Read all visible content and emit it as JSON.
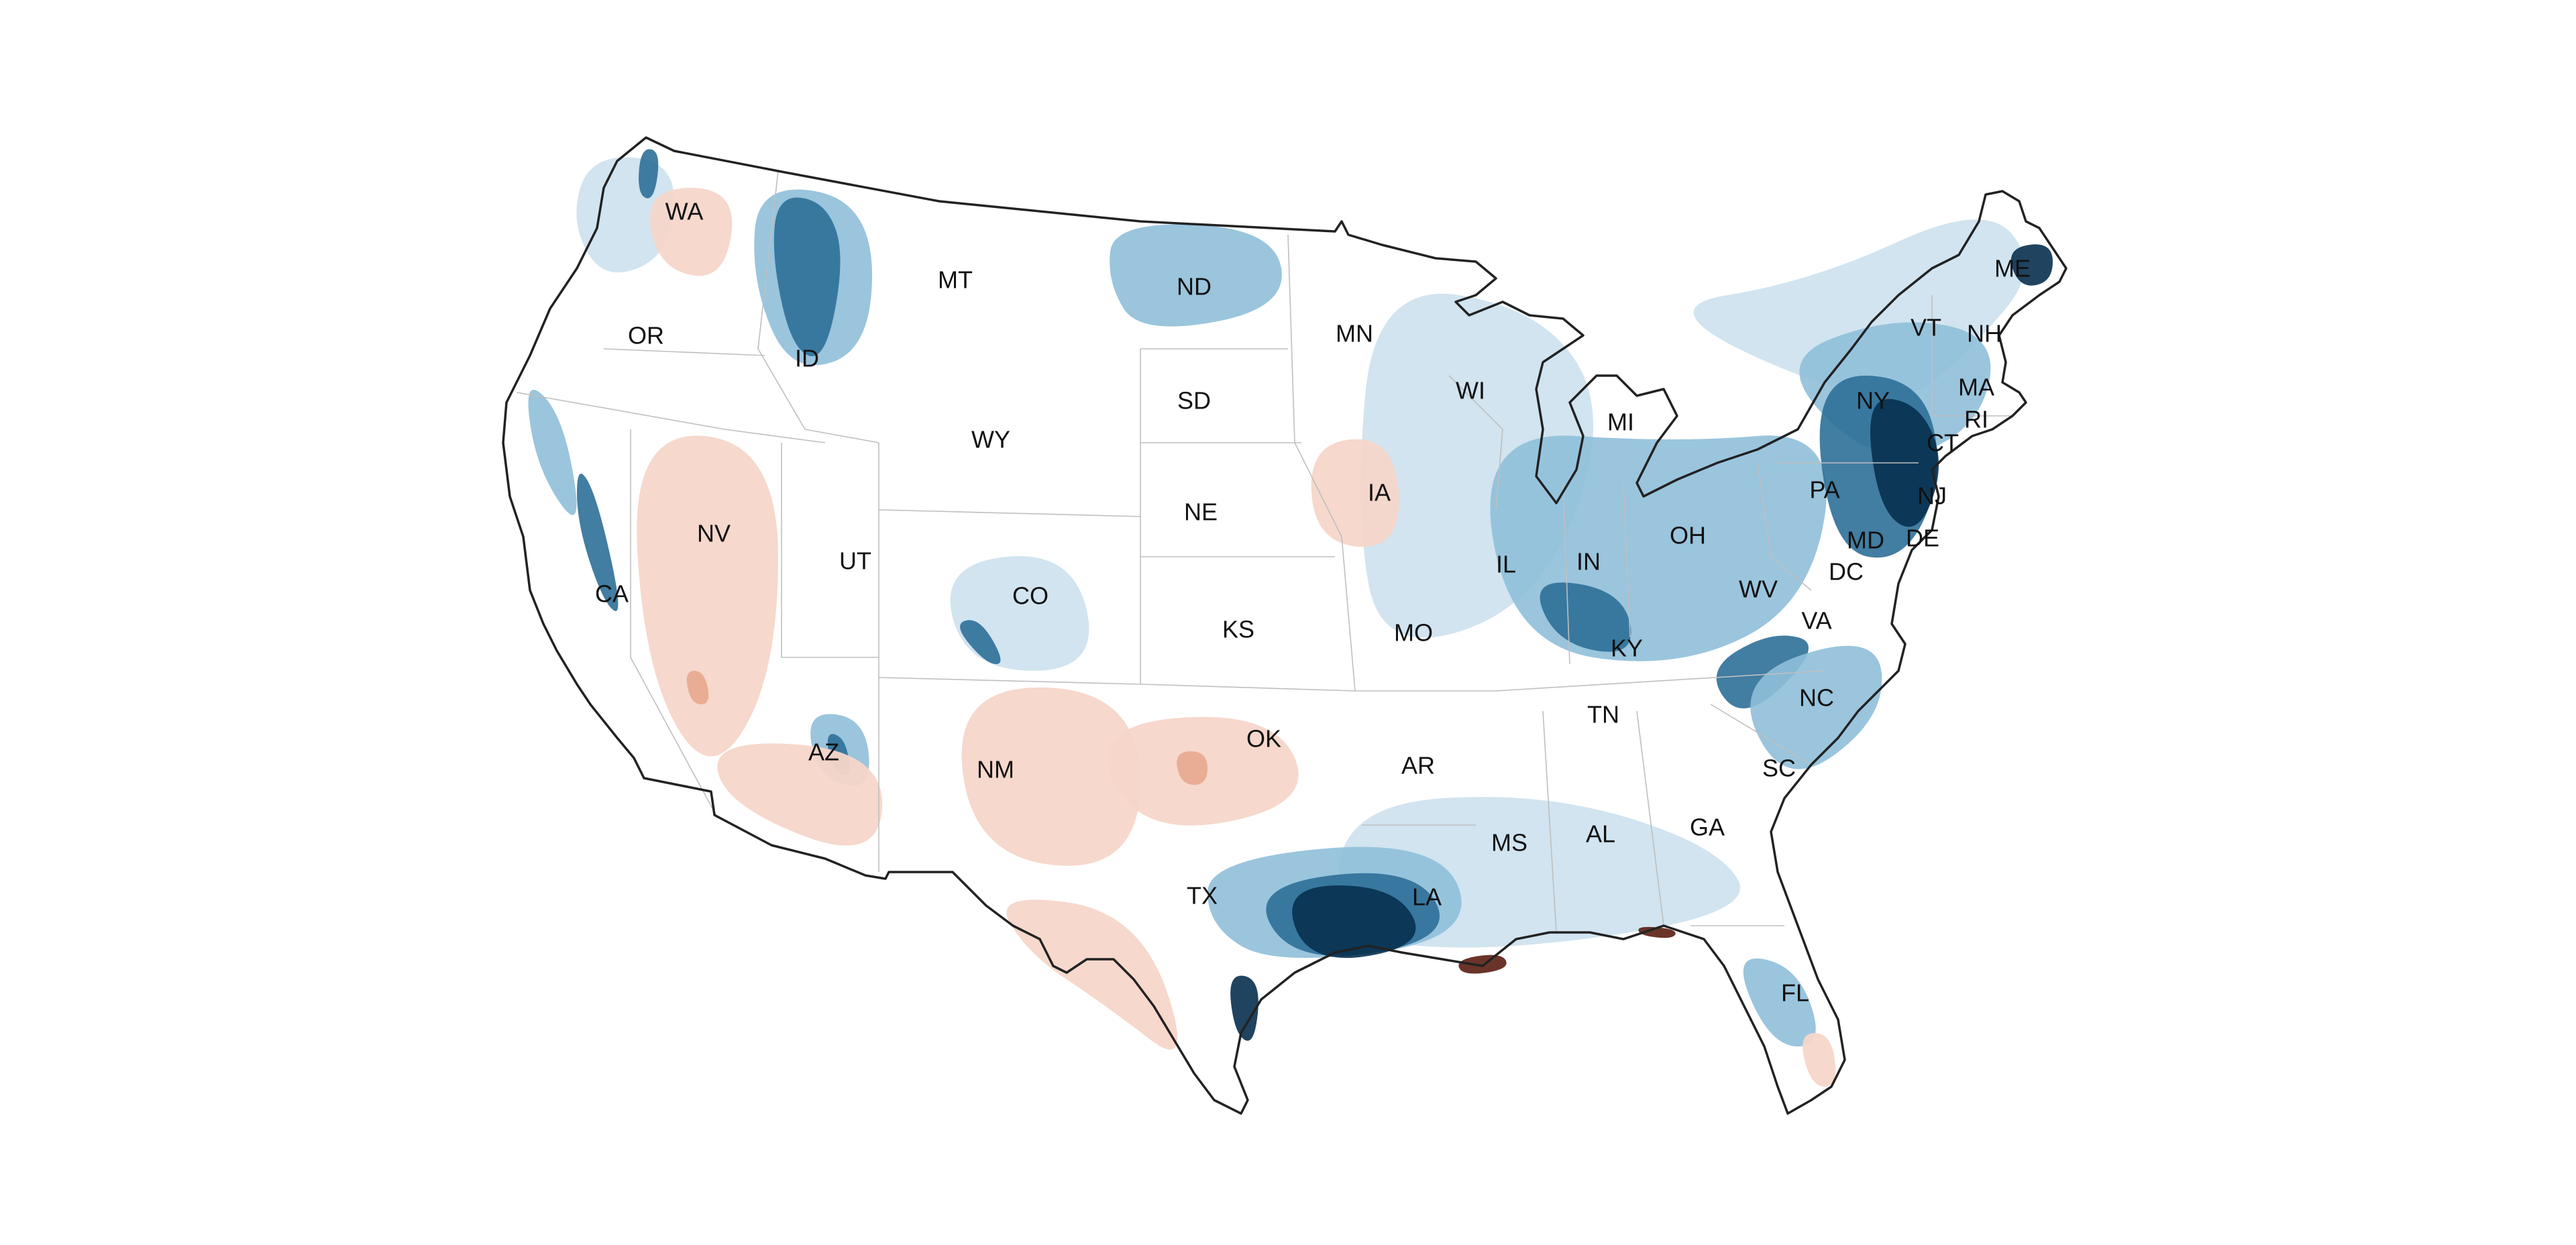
{
  "map": {
    "colors": {
      "dark_blue": "#08304f",
      "mid_blue": "#2d6f98",
      "light_blue": "#8fbfd9",
      "pale_blue": "#cfe3ef",
      "pale_red": "#f6d6c9",
      "mid_red": "#e8a88f",
      "dark_red": "#5a1e12",
      "outline": "#222222",
      "state_border": "#bfbfbf"
    },
    "state_labels": [
      "WA",
      "OR",
      "CA",
      "ID",
      "NV",
      "MT",
      "WY",
      "UT",
      "AZ",
      "CO",
      "NM",
      "ND",
      "SD",
      "NE",
      "KS",
      "OK",
      "TX",
      "MN",
      "IA",
      "MO",
      "AR",
      "LA",
      "WI",
      "IL",
      "MS",
      "MI",
      "IN",
      "KY",
      "TN",
      "AL",
      "OH",
      "GA",
      "FL",
      "SC",
      "NC",
      "WV",
      "VA",
      "PA",
      "MD",
      "DE",
      "DC",
      "NJ",
      "NY",
      "CT",
      "RI",
      "MA",
      "VT",
      "NH",
      "ME"
    ]
  }
}
